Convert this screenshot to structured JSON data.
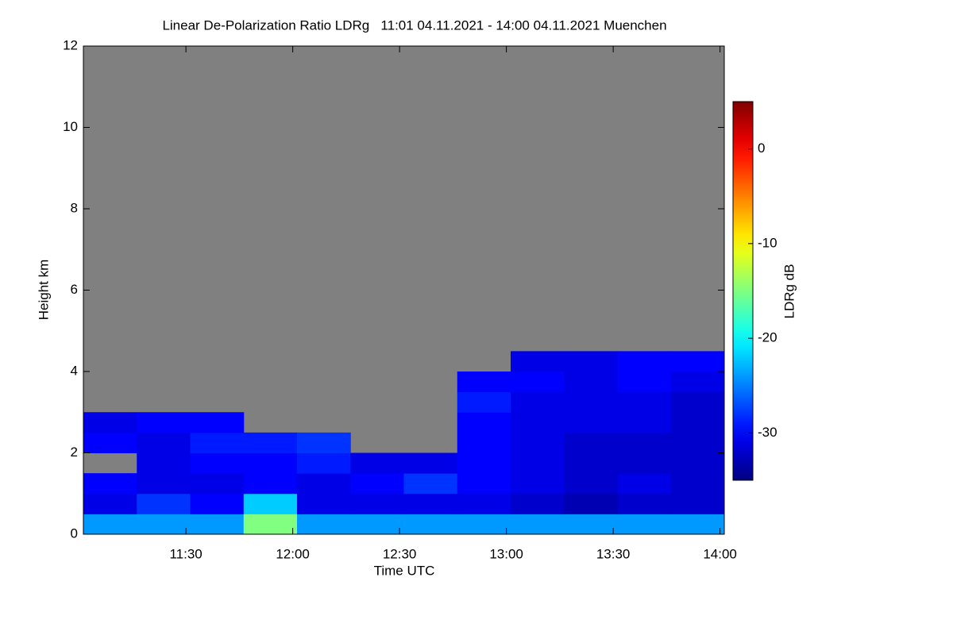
{
  "chart_data": {
    "type": "heatmap",
    "title": "Linear De-Polarization Ratio LDRg   11:01 04.11.2021 - 14:00 04.11.2021 Muenchen",
    "x_label": "Time UTC",
    "y_label": "Height km",
    "colorbar_label": "LDRg dB",
    "xlim": [
      11.02,
      14.02
    ],
    "xticks": [
      {
        "value": 11.5,
        "label": "11:30"
      },
      {
        "value": 12,
        "label": "12:00"
      },
      {
        "value": 12.5,
        "label": "12:30"
      },
      {
        "value": 13,
        "label": "13:00"
      },
      {
        "value": 13.5,
        "label": "13:30"
      },
      {
        "value": 14,
        "label": "14:00"
      }
    ],
    "ylim": [
      0,
      12
    ],
    "yticks": [
      0,
      2,
      4,
      6,
      8,
      10,
      12
    ],
    "zlim": [
      -35,
      5
    ],
    "colorbar_ticks": [
      0,
      -10,
      -20,
      -30
    ],
    "colormap": "jet",
    "missing_color": "#808080",
    "x_bins": [
      11.02,
      11.27,
      11.52,
      11.77,
      12.02,
      12.27,
      12.52,
      12.77,
      13.02,
      13.27,
      13.52,
      13.77,
      14.02
    ],
    "y_bins": [
      0,
      0.5,
      1,
      1.5,
      2,
      2.5,
      3,
      3.5,
      4,
      4.5,
      5
    ],
    "values": [
      [
        -24,
        -24,
        -24,
        -15,
        -24,
        -24,
        -24,
        -24,
        -24,
        -24,
        -24,
        -24
      ],
      [
        -31,
        -28,
        -30,
        -22,
        -31,
        -31,
        -31,
        -31,
        -32,
        -33,
        -32,
        -32
      ],
      [
        -30,
        -31,
        -31,
        -30,
        -31,
        -30,
        -28,
        -30,
        -31,
        -32,
        -31,
        -32
      ],
      [
        null,
        -31,
        -30,
        -30,
        -29,
        -31,
        -31,
        -30,
        -31,
        -32,
        -32,
        -32
      ],
      [
        -30,
        -31,
        -29,
        -29,
        -28,
        null,
        null,
        -30,
        -31,
        -32,
        -32,
        -32
      ],
      [
        -31,
        -30,
        -30,
        null,
        null,
        null,
        null,
        -30,
        -31,
        -31,
        -31,
        -32
      ],
      [
        null,
        null,
        null,
        null,
        null,
        null,
        null,
        -29,
        -31,
        -31,
        -31,
        -32
      ],
      [
        null,
        null,
        null,
        null,
        null,
        null,
        null,
        -30,
        -30,
        -31,
        -30,
        -31
      ],
      [
        null,
        null,
        null,
        null,
        null,
        null,
        null,
        null,
        -31,
        -31,
        -30,
        -30
      ],
      [
        null,
        null,
        null,
        null,
        null,
        null,
        null,
        null,
        null,
        null,
        null,
        null
      ]
    ]
  }
}
